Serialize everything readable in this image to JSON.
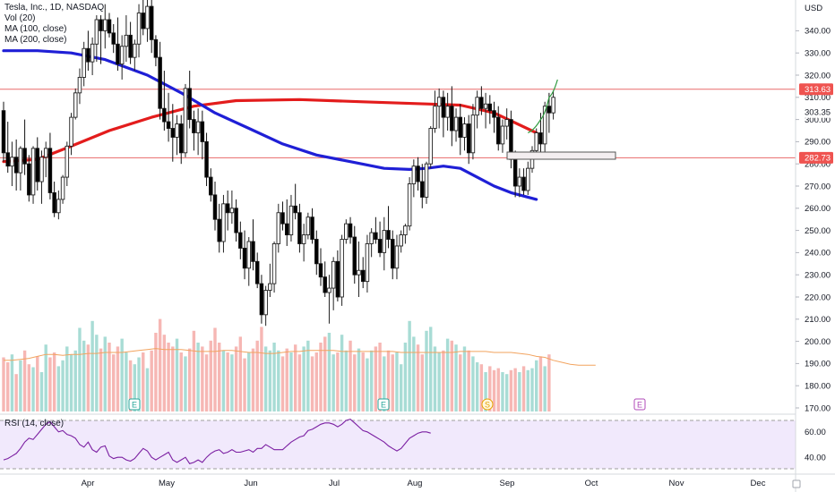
{
  "legend": {
    "symbol": "Tesla, Inc., 1D, NASDAQ",
    "vol": "Vol (20)",
    "ma100": "MA (100, close)",
    "ma200": "MA (200, close)"
  },
  "rsi_label": "RSI (14, close)",
  "currency": "USD",
  "colors": {
    "up": "#26a69a",
    "down": "#ef5350",
    "ma100": "#1f1fd6",
    "ma200": "#e31c1c",
    "hline": "#e86a6a",
    "rsi": "#7b1fa2",
    "rsi_bg": "#f1e9fc",
    "vol_ma": "#f2a35e",
    "projection": "#2e9a3e"
  },
  "price_axis": {
    "ticks": [
      "340.00",
      "330.00",
      "320.00",
      "310.00",
      "300.00",
      "290.00",
      "280.00",
      "270.00",
      "260.00",
      "250.00",
      "240.00",
      "230.00",
      "220.00",
      "210.00",
      "200.00",
      "190.00",
      "180.00",
      "170.00"
    ]
  },
  "rsi_axis": {
    "ticks": [
      "60.00",
      "40.00"
    ]
  },
  "time_axis": {
    "ticks": [
      "Apr",
      "May",
      "Jun",
      "Jul",
      "Aug",
      "Sep",
      "Oct",
      "Nov",
      "Dec"
    ]
  },
  "price_tags": [
    {
      "value": "313.63",
      "color": "#ef5350",
      "text_color": "#ffffff"
    },
    {
      "value": "303.35",
      "color": "#ffffff",
      "text_color": "#131722"
    },
    {
      "value": "282.73",
      "color": "#ef5350",
      "text_color": "#ffffff"
    }
  ],
  "event_markers": [
    {
      "label": "E",
      "kind": "earnings"
    },
    {
      "label": "E",
      "kind": "earnings"
    },
    {
      "label": "S",
      "kind": "split"
    },
    {
      "label": "E",
      "kind": "earnings-upcoming"
    }
  ],
  "chart_data": {
    "type": "candlestick",
    "title": "Tesla, Inc., 1D, NASDAQ",
    "y_unit": "USD",
    "ylim": [
      167,
      347
    ],
    "horizontal_lines": [
      313.63,
      282.73
    ],
    "last_price": 303.35,
    "x_ticks": [
      "Apr",
      "May",
      "Jun",
      "Jul",
      "Aug",
      "Sep",
      "Oct",
      "Nov",
      "Dec"
    ],
    "candles_start_anchor": "Mar 14",
    "candles": [
      [
        304,
        308,
        281,
        285
      ],
      [
        285,
        299,
        276,
        279
      ],
      [
        279,
        290,
        270,
        283
      ],
      [
        283,
        291,
        268,
        276
      ],
      [
        276,
        288,
        268,
        287
      ],
      [
        287,
        300,
        275,
        280
      ],
      [
        280,
        284,
        263,
        266
      ],
      [
        266,
        288,
        262,
        287
      ],
      [
        287,
        292,
        268,
        272
      ],
      [
        272,
        286,
        262,
        283
      ],
      [
        283,
        290,
        274,
        287
      ],
      [
        287,
        294,
        264,
        267
      ],
      [
        267,
        272,
        256,
        258
      ],
      [
        258,
        268,
        255,
        264
      ],
      [
        264,
        275,
        262,
        274
      ],
      [
        274,
        290,
        270,
        288
      ],
      [
        288,
        303,
        284,
        301
      ],
      [
        301,
        314,
        300,
        312
      ],
      [
        312,
        323,
        307,
        319
      ],
      [
        319,
        335,
        315,
        332
      ],
      [
        332,
        340,
        322,
        326
      ],
      [
        326,
        337,
        320,
        334
      ],
      [
        334,
        347,
        326,
        345
      ],
      [
        345,
        347,
        325,
        340
      ],
      [
        340,
        352,
        332,
        345
      ],
      [
        345,
        348,
        337,
        339
      ],
      [
        339,
        343,
        330,
        334
      ],
      [
        334,
        346,
        322,
        325
      ],
      [
        325,
        338,
        318,
        333
      ],
      [
        333,
        347,
        326,
        338
      ],
      [
        338,
        344,
        325,
        328
      ],
      [
        328,
        336,
        322,
        334
      ],
      [
        334,
        352,
        328,
        348
      ],
      [
        348,
        358,
        338,
        341
      ],
      [
        341,
        357,
        335,
        351
      ],
      [
        351,
        355,
        330,
        336
      ],
      [
        336,
        338,
        324,
        328
      ],
      [
        328,
        335,
        300,
        305
      ],
      [
        305,
        322,
        295,
        299
      ],
      [
        299,
        312,
        290,
        296
      ],
      [
        296,
        307,
        281,
        292
      ],
      [
        292,
        302,
        284,
        298
      ],
      [
        298,
        302,
        280,
        285
      ],
      [
        285,
        316,
        283,
        314
      ],
      [
        314,
        322,
        296,
        300
      ],
      [
        300,
        304,
        286,
        294
      ],
      [
        294,
        305,
        284,
        299
      ],
      [
        299,
        304,
        282,
        290
      ],
      [
        290,
        294,
        270,
        274
      ],
      [
        274,
        278,
        263,
        266
      ],
      [
        266,
        272,
        250,
        255
      ],
      [
        255,
        262,
        240,
        245
      ],
      [
        245,
        266,
        240,
        262
      ],
      [
        262,
        268,
        250,
        258
      ],
      [
        258,
        268,
        253,
        260
      ],
      [
        260,
        264,
        245,
        249
      ],
      [
        249,
        254,
        237,
        242
      ],
      [
        242,
        250,
        228,
        233
      ],
      [
        233,
        247,
        225,
        245
      ],
      [
        245,
        255,
        232,
        236
      ],
      [
        236,
        240,
        224,
        226
      ],
      [
        226,
        230,
        208,
        212
      ],
      [
        212,
        225,
        207,
        223
      ],
      [
        223,
        235,
        220,
        226
      ],
      [
        226,
        245,
        222,
        244
      ],
      [
        244,
        262,
        240,
        258
      ],
      [
        258,
        263,
        250,
        253
      ],
      [
        253,
        264,
        243,
        248
      ],
      [
        248,
        266,
        245,
        261
      ],
      [
        261,
        271,
        255,
        258
      ],
      [
        258,
        262,
        240,
        244
      ],
      [
        244,
        253,
        236,
        248
      ],
      [
        248,
        258,
        246,
        256
      ],
      [
        256,
        260,
        244,
        246
      ],
      [
        246,
        250,
        230,
        235
      ],
      [
        235,
        242,
        225,
        229
      ],
      [
        229,
        236,
        220,
        222
      ],
      [
        222,
        230,
        208,
        224
      ],
      [
        224,
        238,
        214,
        236
      ],
      [
        236,
        241,
        218,
        220
      ],
      [
        220,
        248,
        216,
        246
      ],
      [
        246,
        255,
        244,
        253
      ],
      [
        253,
        256,
        244,
        247
      ],
      [
        247,
        252,
        226,
        230
      ],
      [
        230,
        245,
        220,
        232
      ],
      [
        232,
        238,
        224,
        227
      ],
      [
        227,
        248,
        222,
        244
      ],
      [
        244,
        251,
        238,
        249
      ],
      [
        249,
        256,
        244,
        246
      ],
      [
        246,
        254,
        238,
        240
      ],
      [
        240,
        256,
        232,
        250
      ],
      [
        250,
        261,
        242,
        246
      ],
      [
        246,
        250,
        228,
        233
      ],
      [
        233,
        248,
        228,
        243
      ],
      [
        243,
        250,
        240,
        248
      ],
      [
        248,
        253,
        244,
        252
      ],
      [
        252,
        274,
        250,
        271
      ],
      [
        271,
        282,
        265,
        279
      ],
      [
        279,
        283,
        268,
        272
      ],
      [
        272,
        280,
        260,
        265
      ],
      [
        265,
        281,
        262,
        280
      ],
      [
        280,
        297,
        278,
        296
      ],
      [
        296,
        313,
        294,
        306
      ],
      [
        306,
        314,
        296,
        310
      ],
      [
        310,
        313,
        292,
        301
      ],
      [
        301,
        312,
        295,
        306
      ],
      [
        306,
        315,
        288,
        295
      ],
      [
        295,
        305,
        290,
        301
      ],
      [
        301,
        307,
        284,
        292
      ],
      [
        292,
        301,
        286,
        298
      ],
      [
        298,
        302,
        280,
        285
      ],
      [
        285,
        307,
        282,
        302
      ],
      [
        302,
        313,
        296,
        310
      ],
      [
        310,
        315,
        302,
        305
      ],
      [
        305,
        312,
        296,
        307
      ],
      [
        307,
        311,
        298,
        304
      ],
      [
        304,
        308,
        294,
        301
      ],
      [
        301,
        306,
        286,
        289
      ],
      [
        289,
        300,
        285,
        297
      ],
      [
        297,
        305,
        291,
        300
      ],
      [
        300,
        304,
        278,
        282
      ],
      [
        282,
        286,
        265,
        270
      ],
      [
        270,
        278,
        265,
        274
      ],
      [
        274,
        278,
        266,
        268
      ],
      [
        268,
        281,
        266,
        278
      ],
      [
        278,
        288,
        276,
        286
      ],
      [
        286,
        296,
        284,
        294
      ],
      [
        294,
        303,
        284,
        289
      ],
      [
        289,
        308,
        284,
        306
      ],
      [
        306,
        312,
        294,
        303
      ],
      [
        303,
        313,
        300,
        310
      ]
    ],
    "ma200": [
      [
        0,
        281
      ],
      [
        8,
        282
      ],
      [
        16,
        288
      ],
      [
        25,
        295
      ],
      [
        35,
        301
      ],
      [
        45,
        306
      ],
      [
        55,
        308.5
      ],
      [
        70,
        309
      ],
      [
        85,
        308
      ],
      [
        100,
        307
      ],
      [
        108,
        306.5
      ],
      [
        116,
        303
      ],
      [
        126,
        294
      ]
    ],
    "ma100": [
      [
        0,
        331
      ],
      [
        8,
        331
      ],
      [
        16,
        330
      ],
      [
        24,
        327
      ],
      [
        34,
        320
      ],
      [
        42,
        312
      ],
      [
        50,
        303
      ],
      [
        58,
        296
      ],
      [
        66,
        289
      ],
      [
        74,
        284
      ],
      [
        82,
        281
      ],
      [
        90,
        278
      ],
      [
        96,
        277.5
      ],
      [
        100,
        278
      ],
      [
        104,
        279
      ],
      [
        108,
        278
      ],
      [
        112,
        274
      ],
      [
        116,
        270
      ],
      [
        120,
        267
      ],
      [
        126,
        264
      ]
    ],
    "projection": [
      [
        124,
        294
      ],
      [
        127,
        300
      ],
      [
        129,
        310
      ],
      [
        131,
        318
      ]
    ],
    "volume": [
      55,
      50,
      58,
      38,
      52,
      62,
      48,
      45,
      56,
      40,
      68,
      55,
      60,
      46,
      52,
      66,
      58,
      62,
      85,
      72,
      68,
      92,
      78,
      64,
      76,
      70,
      58,
      66,
      74,
      60,
      52,
      48,
      55,
      60,
      44,
      62,
      80,
      94,
      78,
      70,
      66,
      74,
      60,
      56,
      64,
      82,
      70,
      66,
      58,
      72,
      85,
      70,
      62,
      60,
      58,
      66,
      76,
      54,
      60,
      64,
      72,
      86,
      66,
      62,
      70,
      62,
      56,
      64,
      60,
      68,
      58,
      66,
      72,
      56,
      60,
      70,
      76,
      80,
      58,
      60,
      78,
      62,
      72,
      58,
      64,
      60,
      54,
      62,
      66,
      70,
      56,
      62,
      58,
      60,
      48,
      70,
      92,
      76,
      68,
      58,
      82,
      86,
      66,
      60,
      62,
      74,
      72,
      68,
      58,
      66,
      62,
      56,
      50,
      48,
      40,
      46,
      42,
      44,
      40,
      38,
      42,
      44,
      40,
      46,
      42,
      44,
      52,
      56,
      46,
      58
    ],
    "volume_ma": [
      52,
      52,
      53,
      54,
      56,
      58,
      58,
      57,
      58,
      58,
      59,
      59,
      60,
      60,
      60,
      61,
      62,
      63,
      64,
      63,
      63,
      63,
      62,
      61,
      61,
      61,
      62,
      62,
      61,
      60,
      60,
      59,
      59,
      60,
      61,
      61,
      62,
      62,
      62,
      62,
      61,
      61,
      61,
      61,
      61,
      61,
      61,
      60,
      60,
      60,
      60,
      60,
      60,
      60,
      61,
      61,
      61,
      61,
      60,
      60,
      60,
      59,
      58,
      56,
      55,
      52,
      50,
      48,
      47,
      47,
      47
    ],
    "rsi": [
      38,
      39,
      41,
      43,
      47,
      52,
      55,
      54,
      58,
      62,
      66,
      68,
      64,
      60,
      61,
      58,
      57,
      55,
      50,
      48,
      52,
      46,
      44,
      48,
      49,
      41,
      39,
      40,
      40,
      38,
      37,
      39,
      43,
      47,
      45,
      40,
      38,
      40,
      42,
      44,
      38,
      36,
      38,
      40,
      35,
      36,
      38,
      36,
      40,
      43,
      45,
      46,
      43,
      44,
      46,
      44,
      44,
      45,
      46,
      44,
      47,
      47,
      50,
      48,
      46,
      46,
      46,
      49,
      52,
      54,
      56,
      57,
      61,
      62,
      64,
      66,
      67,
      67,
      66,
      64,
      66,
      69,
      70,
      67,
      64,
      61,
      60,
      58,
      56,
      54,
      52,
      49,
      47,
      45,
      47,
      51,
      55,
      57,
      59,
      60,
      60,
      59
    ],
    "rsi_ylim": [
      31,
      69
    ],
    "rsi_levels": [
      70,
      30
    ]
  }
}
